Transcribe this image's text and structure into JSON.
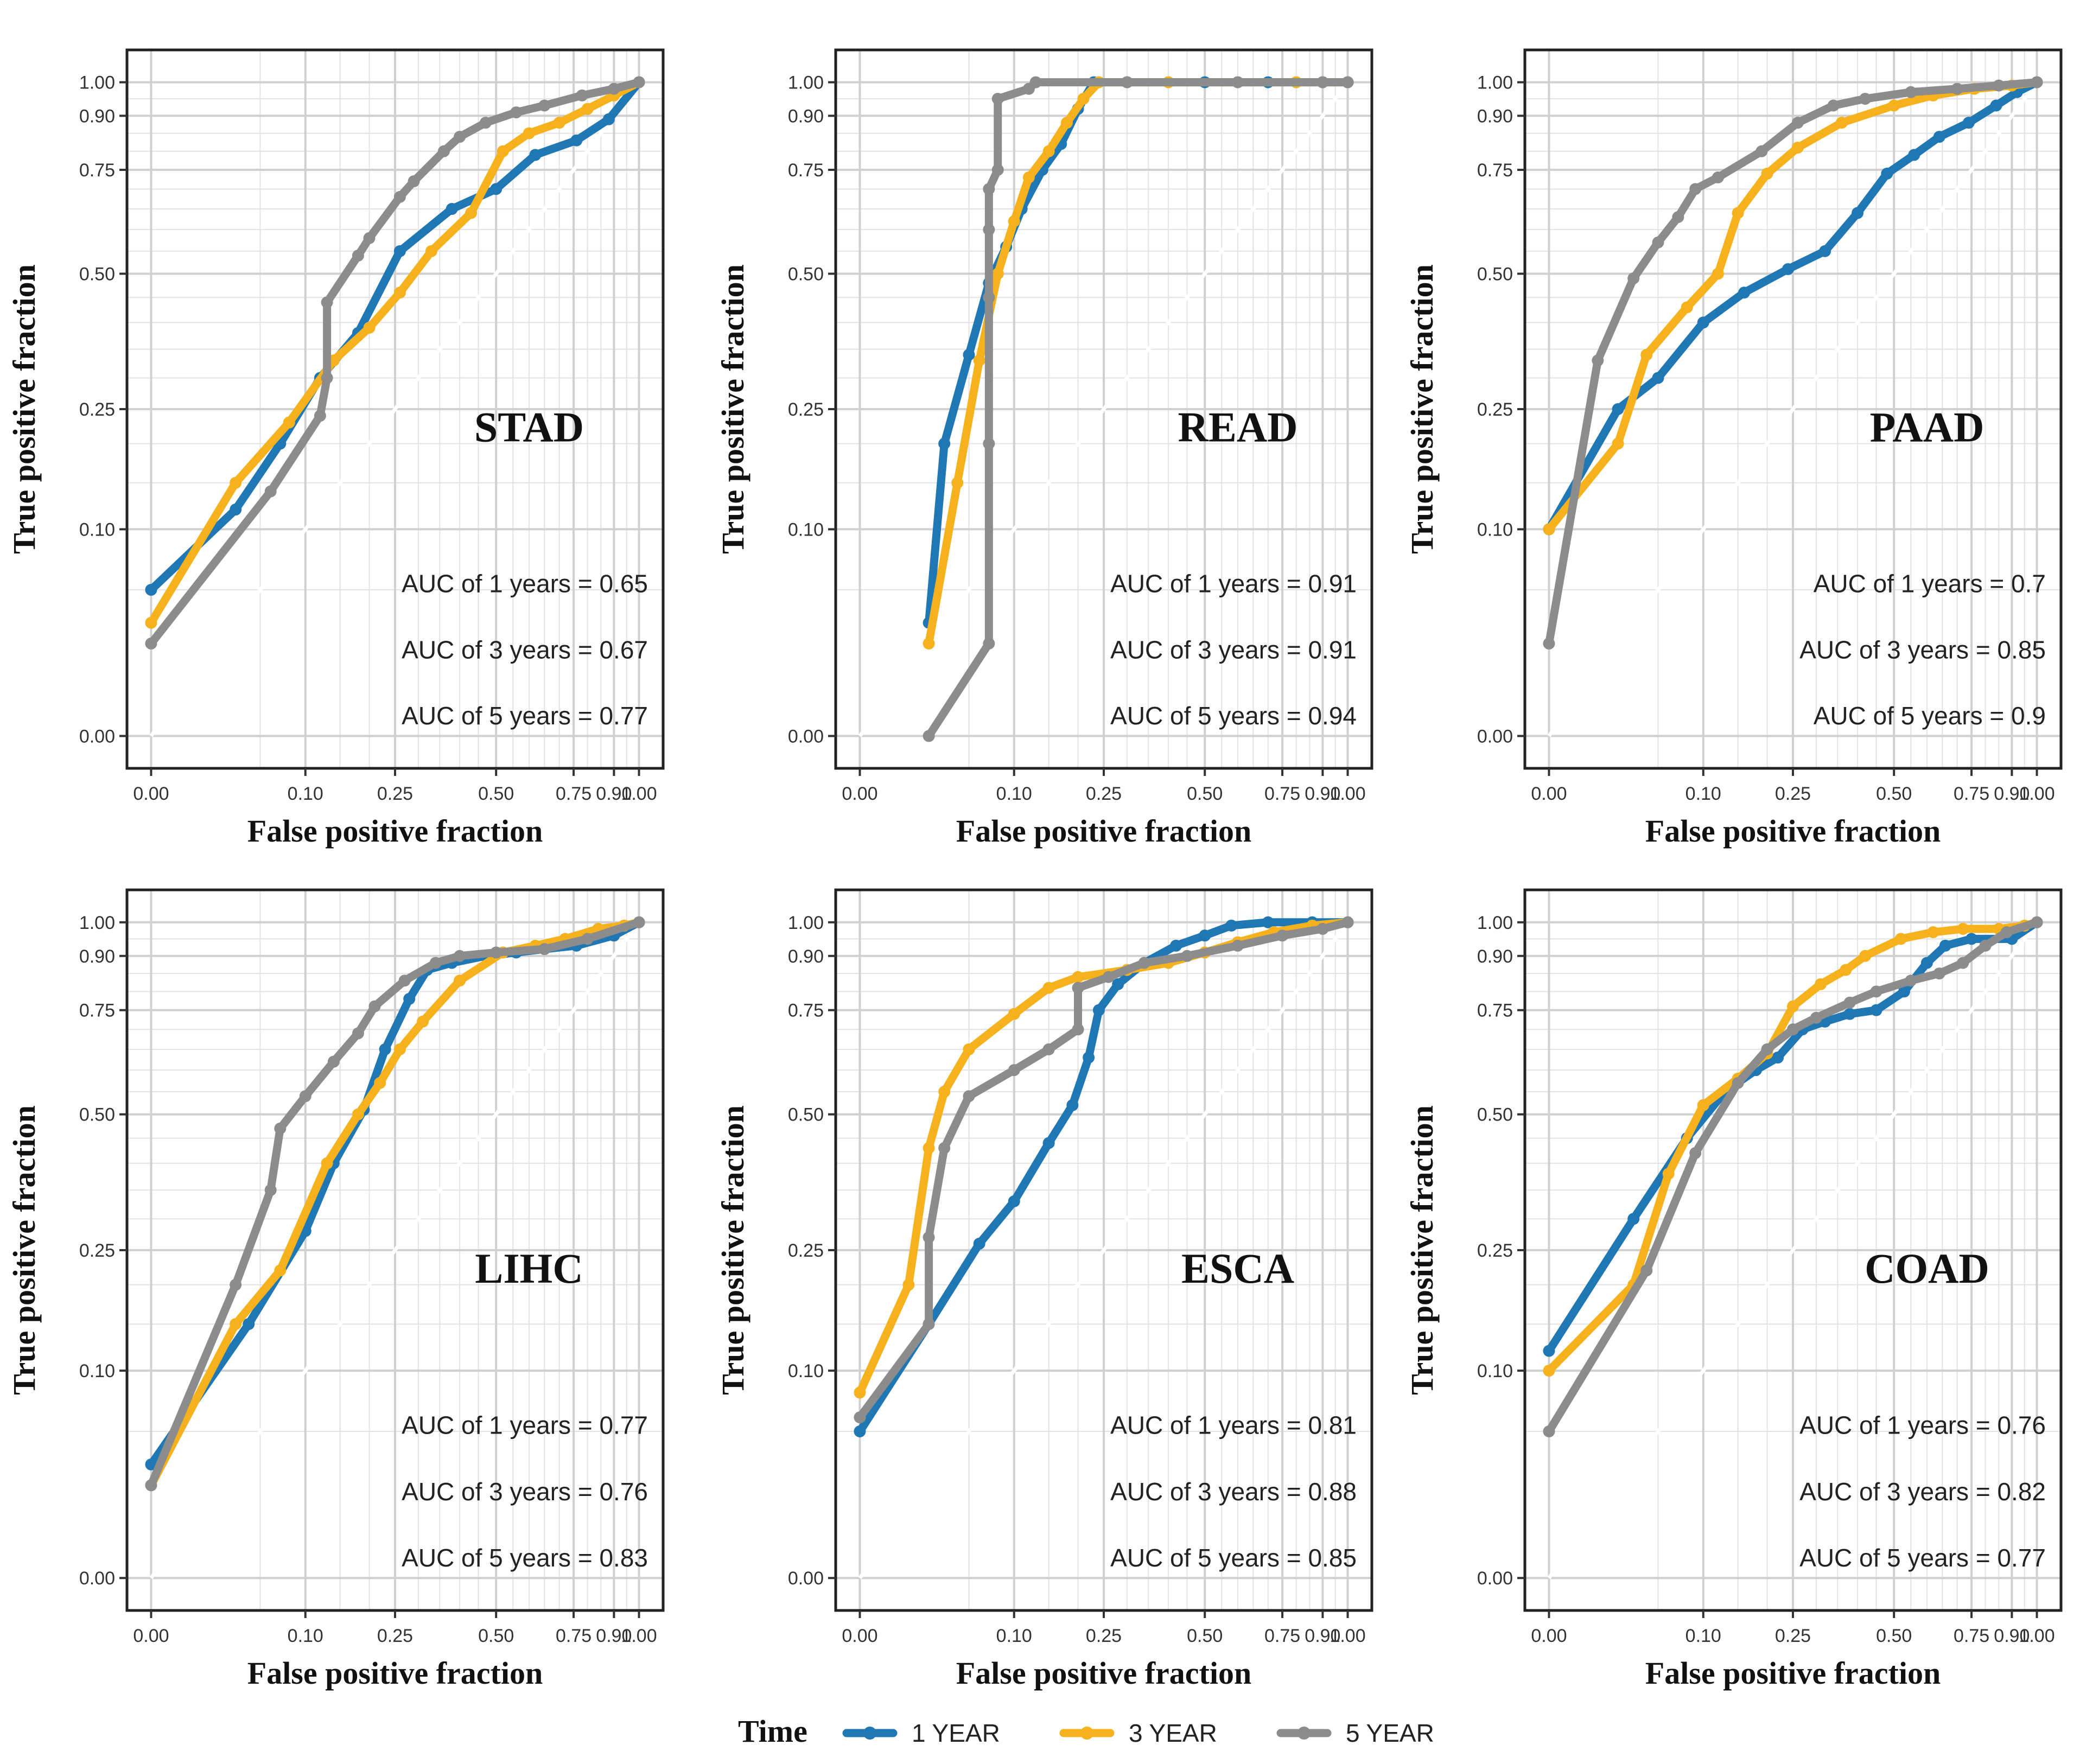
{
  "colors": {
    "year1": "#1f77b4",
    "year3": "#f5b21c",
    "year5": "#8c8c8c",
    "grid": "#e3e3e3",
    "frame": "#222222"
  },
  "legend": {
    "title": "Time",
    "items": [
      {
        "label": "1 YEAR",
        "color": "#1f77b4"
      },
      {
        "label": "3 YEAR",
        "color": "#f5b21c"
      },
      {
        "label": "5 YEAR",
        "color": "#8c8c8c"
      }
    ]
  },
  "chart_data": [
    {
      "type": "line",
      "title": "STAD",
      "xlabel": "False positive fraction",
      "ylabel": "True positive fraction",
      "xticks": [
        "0.00",
        "0.10",
        "0.25",
        "0.50",
        "0.75",
        "0.90",
        "1.00"
      ],
      "yticks": [
        "0.00",
        "0.10",
        "0.25",
        "0.50",
        "0.75",
        "0.90",
        "1.00"
      ],
      "xticks_v": [
        0,
        0.1,
        0.25,
        0.5,
        0.75,
        0.9,
        1
      ],
      "yticks_v": [
        0,
        0.1,
        0.25,
        0.5,
        0.75,
        0.9,
        1
      ],
      "auc": [
        "AUC of 1 years = 0.65",
        "AUC of 3 years = 0.67",
        "AUC of 5 years = 0.77"
      ],
      "series": [
        {
          "name": "1 YEAR",
          "x": [
            0,
            0.03,
            0.07,
            0.12,
            0.18,
            0.26,
            0.38,
            0.5,
            0.62,
            0.76,
            0.88,
            1.0
          ],
          "y": [
            0.05,
            0.12,
            0.2,
            0.3,
            0.38,
            0.55,
            0.65,
            0.7,
            0.79,
            0.83,
            0.89,
            1.0
          ]
        },
        {
          "name": "3 YEAR",
          "x": [
            0,
            0.03,
            0.08,
            0.14,
            0.2,
            0.26,
            0.33,
            0.43,
            0.52,
            0.6,
            0.7,
            0.8,
            0.9,
            1.0
          ],
          "y": [
            0.03,
            0.15,
            0.23,
            0.33,
            0.39,
            0.46,
            0.55,
            0.64,
            0.8,
            0.85,
            0.88,
            0.92,
            0.96,
            1.0
          ]
        },
        {
          "name": "5 YEAR",
          "x": [
            0,
            0.06,
            0.12,
            0.13,
            0.13,
            0.18,
            0.2,
            0.26,
            0.29,
            0.36,
            0.4,
            0.47,
            0.56,
            0.65,
            0.78,
            0.9,
            1.0
          ],
          "y": [
            0.02,
            0.14,
            0.24,
            0.3,
            0.44,
            0.54,
            0.58,
            0.68,
            0.72,
            0.8,
            0.84,
            0.88,
            0.91,
            0.93,
            0.96,
            0.98,
            1.0
          ]
        }
      ]
    },
    {
      "type": "line",
      "title": "READ",
      "xlabel": "False positive fraction",
      "ylabel": "True positive fraction",
      "xticks": [
        "0.00",
        "0.10",
        "0.25",
        "0.50",
        "0.75",
        "0.90",
        "1.00"
      ],
      "yticks": [
        "0.00",
        "0.10",
        "0.25",
        "0.50",
        "0.75",
        "0.90",
        "1.00"
      ],
      "xticks_v": [
        0,
        0.1,
        0.25,
        0.5,
        0.75,
        0.9,
        1
      ],
      "yticks_v": [
        0,
        0.1,
        0.25,
        0.5,
        0.75,
        0.9,
        1
      ],
      "auc": [
        "AUC of 1 years = 0.91",
        "AUC of 3 years = 0.91",
        "AUC of 5 years = 0.94"
      ],
      "series": [
        {
          "name": "1 YEAR",
          "x": [
            0.02,
            0.03,
            0.05,
            0.07,
            0.09,
            0.11,
            0.14,
            0.17,
            0.2,
            0.23,
            0.3,
            0.5,
            0.7,
            0.9,
            1.0
          ],
          "y": [
            0.03,
            0.2,
            0.34,
            0.48,
            0.56,
            0.65,
            0.75,
            0.82,
            0.92,
            1.0,
            1.0,
            1.0,
            1.0,
            1.0,
            1.0
          ]
        },
        {
          "name": "3 YEAR",
          "x": [
            0.02,
            0.04,
            0.06,
            0.08,
            0.1,
            0.12,
            0.15,
            0.18,
            0.21,
            0.24,
            0.4,
            0.6,
            0.8,
            0.9,
            1.0
          ],
          "y": [
            0.02,
            0.15,
            0.33,
            0.5,
            0.62,
            0.73,
            0.8,
            0.88,
            0.95,
            1.0,
            1.0,
            1.0,
            1.0,
            1.0,
            1.0
          ]
        },
        {
          "name": "5 YEAR",
          "x": [
            0.02,
            0.07,
            0.07,
            0.07,
            0.07,
            0.07,
            0.08,
            0.08,
            0.12,
            0.13,
            0.3,
            0.6,
            0.9,
            1.0
          ],
          "y": [
            0.0,
            0.02,
            0.2,
            0.45,
            0.6,
            0.7,
            0.75,
            0.95,
            0.98,
            1.0,
            1.0,
            1.0,
            1.0,
            1.0
          ]
        }
      ]
    },
    {
      "type": "line",
      "title": "PAAD",
      "xlabel": "False positive fraction",
      "ylabel": "True positive fraction",
      "xticks": [
        "0.00",
        "0.10",
        "0.25",
        "0.50",
        "0.75",
        "0.90",
        "1.00"
      ],
      "yticks": [
        "0.00",
        "0.10",
        "0.25",
        "0.50",
        "0.75",
        "0.90",
        "1.00"
      ],
      "xticks_v": [
        0,
        0.1,
        0.25,
        0.5,
        0.75,
        0.9,
        1
      ],
      "yticks_v": [
        0,
        0.1,
        0.25,
        0.5,
        0.75,
        0.9,
        1
      ],
      "auc": [
        "AUC of 1 years = 0.7",
        "AUC of 3 years = 0.85",
        "AUC of 5 years = 0.9"
      ],
      "series": [
        {
          "name": "1 YEAR",
          "x": [
            0,
            0.02,
            0.05,
            0.1,
            0.16,
            0.24,
            0.32,
            0.4,
            0.48,
            0.56,
            0.64,
            0.74,
            0.84,
            0.92,
            1.0
          ],
          "y": [
            0.1,
            0.25,
            0.3,
            0.4,
            0.46,
            0.51,
            0.55,
            0.64,
            0.74,
            0.79,
            0.84,
            0.88,
            0.93,
            0.97,
            1.0
          ]
        },
        {
          "name": "3 YEAR",
          "x": [
            0,
            0.02,
            0.04,
            0.08,
            0.12,
            0.15,
            0.2,
            0.26,
            0.36,
            0.5,
            0.62,
            0.76,
            0.9,
            1.0
          ],
          "y": [
            0.1,
            0.2,
            0.34,
            0.43,
            0.5,
            0.64,
            0.74,
            0.81,
            0.88,
            0.93,
            0.96,
            0.98,
            0.99,
            1.0
          ]
        },
        {
          "name": "5 YEAR",
          "x": [
            0,
            0.01,
            0.03,
            0.05,
            0.07,
            0.09,
            0.12,
            0.19,
            0.26,
            0.34,
            0.42,
            0.55,
            0.7,
            0.85,
            1.0
          ],
          "y": [
            0.02,
            0.33,
            0.49,
            0.57,
            0.63,
            0.7,
            0.73,
            0.8,
            0.88,
            0.93,
            0.95,
            0.97,
            0.98,
            0.99,
            1.0
          ]
        }
      ]
    },
    {
      "type": "line",
      "title": "LIHC",
      "xlabel": "False positive fraction",
      "ylabel": "True positive fraction",
      "xticks": [
        "0.00",
        "0.10",
        "0.25",
        "0.50",
        "0.75",
        "0.90",
        "1.00"
      ],
      "yticks": [
        "0.00",
        "0.10",
        "0.25",
        "0.50",
        "0.75",
        "0.90",
        "1.00"
      ],
      "xticks_v": [
        0,
        0.1,
        0.25,
        0.5,
        0.75,
        0.9,
        1
      ],
      "yticks_v": [
        0,
        0.1,
        0.25,
        0.5,
        0.75,
        0.9,
        1
      ],
      "auc": [
        "AUC of 1 years = 0.77",
        "AUC of 3 years = 0.76",
        "AUC of 5 years = 0.83"
      ],
      "series": [
        {
          "name": "1 YEAR",
          "x": [
            0,
            0.04,
            0.1,
            0.14,
            0.19,
            0.23,
            0.28,
            0.32,
            0.38,
            0.47,
            0.56,
            0.65,
            0.76,
            0.9,
            1.0
          ],
          "y": [
            0.03,
            0.15,
            0.28,
            0.4,
            0.51,
            0.65,
            0.78,
            0.86,
            0.88,
            0.9,
            0.91,
            0.92,
            0.93,
            0.96,
            1.0
          ]
        },
        {
          "name": "3 YEAR",
          "x": [
            0,
            0.03,
            0.07,
            0.13,
            0.18,
            0.22,
            0.26,
            0.31,
            0.4,
            0.52,
            0.62,
            0.72,
            0.84,
            0.94,
            1.0
          ],
          "y": [
            0.02,
            0.15,
            0.22,
            0.4,
            0.5,
            0.57,
            0.65,
            0.72,
            0.83,
            0.91,
            0.93,
            0.95,
            0.98,
            0.99,
            1.0
          ]
        },
        {
          "name": "5 YEAR",
          "x": [
            0,
            0.03,
            0.06,
            0.07,
            0.1,
            0.14,
            0.18,
            0.21,
            0.27,
            0.34,
            0.4,
            0.5,
            0.65,
            0.8,
            1.0
          ],
          "y": [
            0.02,
            0.2,
            0.35,
            0.47,
            0.54,
            0.62,
            0.69,
            0.76,
            0.83,
            0.88,
            0.9,
            0.91,
            0.92,
            0.95,
            1.0
          ]
        }
      ]
    },
    {
      "type": "line",
      "title": "ESCA",
      "xlabel": "False positive fraction",
      "ylabel": "True positive fraction",
      "xticks": [
        "0.00",
        "0.10",
        "0.25",
        "0.50",
        "0.75",
        "0.90",
        "1.00"
      ],
      "yticks": [
        "0.00",
        "0.10",
        "0.25",
        "0.50",
        "0.75",
        "0.90",
        "1.00"
      ],
      "xticks_v": [
        0,
        0.1,
        0.25,
        0.5,
        0.75,
        0.9,
        1
      ],
      "yticks_v": [
        0,
        0.1,
        0.25,
        0.5,
        0.75,
        0.9,
        1
      ],
      "auc": [
        "AUC of 1 years = 0.81",
        "AUC of 3 years = 0.88",
        "AUC of 5 years = 0.85"
      ],
      "series": [
        {
          "name": "1 YEAR",
          "x": [
            0,
            0.02,
            0.06,
            0.1,
            0.15,
            0.19,
            0.22,
            0.24,
            0.28,
            0.34,
            0.42,
            0.5,
            0.58,
            0.7,
            0.86,
            1.0
          ],
          "y": [
            0.05,
            0.15,
            0.26,
            0.33,
            0.44,
            0.52,
            0.63,
            0.75,
            0.82,
            0.88,
            0.93,
            0.96,
            0.99,
            1.0,
            1.0,
            1.0
          ]
        },
        {
          "name": "3 YEAR",
          "x": [
            0,
            0.01,
            0.02,
            0.03,
            0.05,
            0.1,
            0.15,
            0.2,
            0.3,
            0.4,
            0.5,
            0.6,
            0.72,
            0.86,
            1.0
          ],
          "y": [
            0.08,
            0.2,
            0.43,
            0.55,
            0.65,
            0.74,
            0.81,
            0.84,
            0.86,
            0.88,
            0.91,
            0.94,
            0.97,
            0.99,
            1.0
          ]
        },
        {
          "name": "5 YEAR",
          "x": [
            0,
            0.02,
            0.02,
            0.03,
            0.05,
            0.1,
            0.15,
            0.2,
            0.2,
            0.26,
            0.34,
            0.45,
            0.6,
            0.75,
            0.9,
            1.0
          ],
          "y": [
            0.06,
            0.15,
            0.27,
            0.43,
            0.54,
            0.6,
            0.65,
            0.7,
            0.81,
            0.84,
            0.88,
            0.9,
            0.93,
            0.96,
            0.98,
            1.0
          ]
        }
      ]
    },
    {
      "type": "line",
      "title": "COAD",
      "xlabel": "False positive fraction",
      "ylabel": "True positive fraction",
      "xticks": [
        "0.00",
        "0.10",
        "0.25",
        "0.50",
        "0.75",
        "0.90",
        "1.00"
      ],
      "yticks": [
        "0.00",
        "0.10",
        "0.25",
        "0.50",
        "0.75",
        "0.90",
        "1.00"
      ],
      "xticks_v": [
        0,
        0.1,
        0.25,
        0.5,
        0.75,
        0.9,
        1
      ],
      "yticks_v": [
        0,
        0.1,
        0.25,
        0.5,
        0.75,
        0.9,
        1
      ],
      "auc": [
        "AUC of 1 years = 0.76",
        "AUC of 3 years = 0.82",
        "AUC of 5 years = 0.77"
      ],
      "series": [
        {
          "name": "1 YEAR",
          "x": [
            0,
            0.03,
            0.08,
            0.13,
            0.18,
            0.22,
            0.27,
            0.32,
            0.38,
            0.45,
            0.53,
            0.6,
            0.66,
            0.75,
            0.9,
            1.0
          ],
          "y": [
            0.12,
            0.3,
            0.45,
            0.55,
            0.6,
            0.63,
            0.7,
            0.72,
            0.74,
            0.75,
            0.8,
            0.88,
            0.93,
            0.95,
            0.95,
            1.0
          ]
        },
        {
          "name": "3 YEAR",
          "x": [
            0,
            0.03,
            0.06,
            0.1,
            0.15,
            0.2,
            0.25,
            0.31,
            0.37,
            0.42,
            0.52,
            0.62,
            0.72,
            0.85,
            0.95,
            1.0
          ],
          "y": [
            0.1,
            0.2,
            0.38,
            0.52,
            0.58,
            0.64,
            0.76,
            0.82,
            0.86,
            0.9,
            0.95,
            0.97,
            0.98,
            0.98,
            0.99,
            1.0
          ]
        },
        {
          "name": "5 YEAR",
          "x": [
            0,
            0.04,
            0.09,
            0.15,
            0.2,
            0.25,
            0.3,
            0.38,
            0.45,
            0.55,
            0.64,
            0.72,
            0.8,
            0.88,
            1.0
          ],
          "y": [
            0.05,
            0.22,
            0.42,
            0.57,
            0.65,
            0.7,
            0.73,
            0.77,
            0.8,
            0.83,
            0.85,
            0.88,
            0.93,
            0.97,
            1.0
          ]
        }
      ]
    }
  ]
}
